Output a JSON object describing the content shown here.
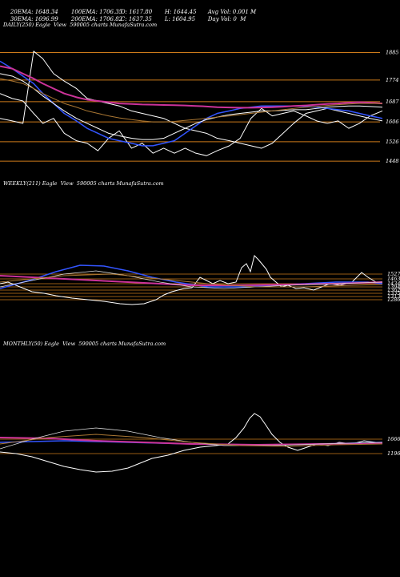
{
  "header": {
    "row1": [
      "20EMA: 1648.34",
      "100EMA: 1706.35",
      "O: 1617.80",
      "H: 1644.45",
      "Avg Vol: 0.001 M"
    ],
    "row2": [
      "30EMA: 1696.99",
      "200EMA: 1706.82",
      "C: 1637.35",
      "L: 1604.95",
      "Day Vol: 0  M"
    ]
  },
  "panels": [
    {
      "id": "daily",
      "label": "DAILY(250) Eagle  View  590005 charts MunafaSutra.com"
    },
    {
      "id": "weekly",
      "label": "WEEKLY(211) Eagle  View  590005 charts MunafaSutra.com"
    },
    {
      "id": "monthly",
      "label": "MONTHLY(50) Eagle  View  590005 charts MunafaSutra.com"
    }
  ],
  "chart_data": [
    {
      "type": "line",
      "title": "DAILY(250) Eagle  View  590005 charts MunafaSutra.com",
      "ylim": [
        1400,
        1980
      ],
      "hlines": [
        1885,
        1774,
        1687,
        1606,
        1526,
        1448
      ],
      "y_tick_labels": [
        "1885",
        "1774",
        "1687",
        "1606",
        "1526",
        "1448"
      ],
      "x": [
        0,
        8,
        15,
        22,
        28,
        35,
        42,
        50,
        57,
        64,
        71,
        78,
        86,
        93,
        100,
        107,
        114,
        121,
        128,
        135,
        142,
        150,
        157,
        164,
        171,
        178,
        185,
        192,
        200,
        207,
        214,
        221,
        228,
        235,
        242,
        250
      ],
      "series": [
        {
          "role": "price",
          "color": "#ffffff",
          "values": [
            1720,
            1700,
            1690,
            1640,
            1600,
            1620,
            1560,
            1530,
            1520,
            1490,
            1540,
            1570,
            1500,
            1520,
            1480,
            1500,
            1480,
            1500,
            1480,
            1470,
            1490,
            1510,
            1540,
            1620,
            1660,
            1630,
            1640,
            1650,
            1630,
            1610,
            1600,
            1610,
            1580,
            1600,
            1630,
            1650
          ]
        },
        {
          "role": "price-2",
          "color": "#ffffff",
          "values": [
            1620,
            1610,
            1600,
            1890,
            1860,
            1800,
            1770,
            1740,
            1700,
            1690,
            1680,
            1670,
            1650,
            1640,
            1630,
            1620,
            1600,
            1580,
            1570,
            1560,
            1540,
            1530,
            1520,
            1510,
            1500,
            1520,
            1560,
            1600,
            1640,
            1650,
            1660,
            1650,
            1640,
            1630,
            1620,
            1610
          ]
        },
        {
          "role": "ma-fast",
          "color": "#3355ff",
          "values": [
            1850,
            1820,
            1790,
            1760,
            1720,
            1680,
            1640,
            1610,
            1580,
            1560,
            1540,
            1530,
            1520,
            1510,
            1510,
            1520,
            1530,
            1560,
            1590,
            1620,
            1640,
            1650,
            1660,
            1665,
            1670,
            1670,
            1670,
            1670,
            1668,
            1665,
            1660,
            1655,
            1650,
            1640,
            1630,
            1620
          ]
        },
        {
          "role": "ma-mid",
          "color": "#ffffff",
          "values": [
            1800,
            1790,
            1770,
            1740,
            1710,
            1680,
            1650,
            1620,
            1600,
            1580,
            1560,
            1550,
            1540,
            1535,
            1535,
            1540,
            1560,
            1580,
            1600,
            1615,
            1625,
            1635,
            1640,
            1645,
            1650,
            1650,
            1652,
            1655,
            1655,
            1660,
            1665,
            1668,
            1670,
            1670,
            1668,
            1665
          ]
        },
        {
          "role": "ma-slow",
          "color": "#cc3399",
          "values": [
            1830,
            1820,
            1800,
            1780,
            1760,
            1740,
            1720,
            1705,
            1695,
            1690,
            1685,
            1680,
            1678,
            1676,
            1675,
            1674,
            1673,
            1672,
            1670,
            1668,
            1665,
            1664,
            1663,
            1663,
            1664,
            1665,
            1667,
            1670,
            1672,
            1675,
            1678,
            1680,
            1683,
            1685,
            1683,
            1680
          ]
        },
        {
          "role": "ma-200",
          "color": "#aa7733",
          "values": [
            1780,
            1770,
            1760,
            1740,
            1720,
            1700,
            1680,
            1665,
            1650,
            1640,
            1630,
            1622,
            1615,
            1610,
            1606,
            1606,
            1608,
            1612,
            1616,
            1620,
            1625,
            1630,
            1635,
            1640,
            1645,
            1650,
            1655,
            1660,
            1665,
            1668,
            1672,
            1675,
            1678,
            1680,
            1680,
            1680
          ]
        }
      ]
    },
    {
      "type": "line",
      "title": "WEEKLY(211) Eagle  View  590005 charts MunafaSutra.com",
      "hlines": [
        1527,
        1463,
        1434,
        1394,
        1362,
        1335,
        1313,
        1286
      ],
      "y_tick_labels": [
        "1527",
        "1463",
        "1434",
        "1394",
        "1362",
        "1335",
        "1313",
        "1286"
      ]
    },
    {
      "type": "line",
      "title": "MONTHLY(50) Eagle  View  590005 charts MunafaSutra.com",
      "hlines": [
        1666,
        1196
      ],
      "y_tick_labels": [
        "1666",
        "1196"
      ]
    }
  ],
  "colors": {
    "background": "#000000",
    "hline": "#cc7a1a",
    "price": "#ffffff",
    "ma_fast": "#3355ff",
    "ma_slow": "#cc3399",
    "ma_mid": "#ffffff",
    "ma_200": "#aa7733"
  }
}
